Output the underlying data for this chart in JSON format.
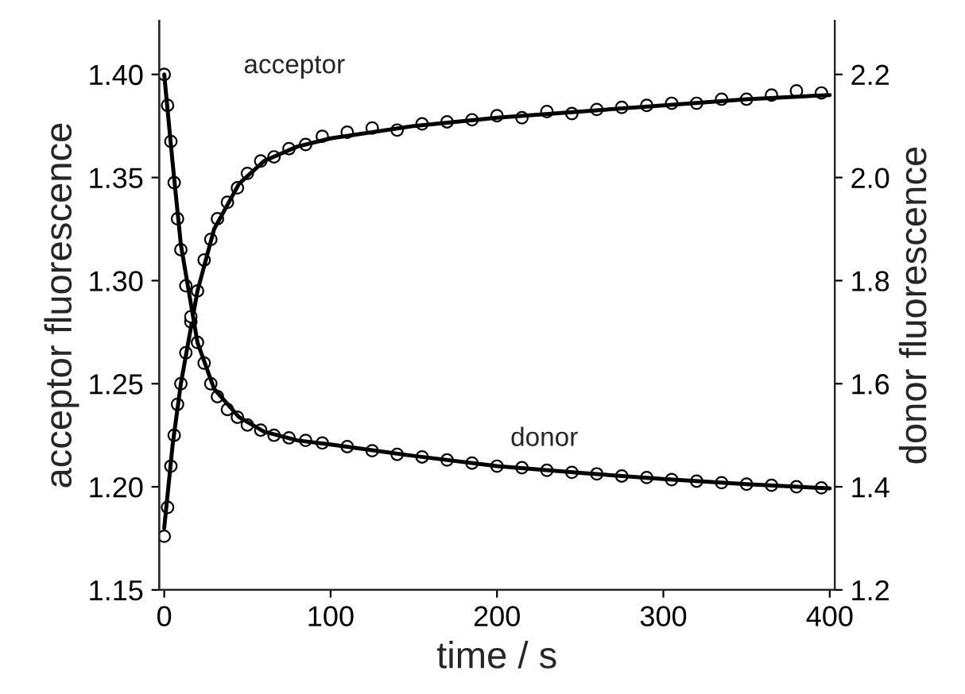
{
  "chart_data": {
    "type": "scatter",
    "xlabel": "time / s",
    "ylabel": "acceptor fluorescence",
    "y2label": "donor fluorescence",
    "xlim": [
      -3,
      403
    ],
    "xticks": [
      0,
      100,
      200,
      300,
      400
    ],
    "ylim": [
      1.15,
      1.426
    ],
    "yticks": [
      {
        "value": 1.15,
        "label": "1.15"
      },
      {
        "value": 1.2,
        "label": "1.20"
      },
      {
        "value": 1.25,
        "label": "1.25"
      },
      {
        "value": 1.3,
        "label": "1.30"
      },
      {
        "value": 1.35,
        "label": "1.35"
      },
      {
        "value": 1.4,
        "label": "1.40"
      }
    ],
    "y2lim": [
      1.2,
      2.304
    ],
    "y2ticks": [
      {
        "value": 1.2,
        "label": "1.2"
      },
      {
        "value": 1.4,
        "label": "1.4"
      },
      {
        "value": 1.6,
        "label": "1.6"
      },
      {
        "value": 1.8,
        "label": "1.8"
      },
      {
        "value": 2.0,
        "label": "2.0"
      },
      {
        "value": 2.2,
        "label": "2.2"
      }
    ],
    "grid": false,
    "annotations": [
      "acceptor",
      "donor"
    ],
    "series": [
      {
        "marker": "circle",
        "color": "#000000",
        "x": [
          0,
          2,
          4,
          6,
          8,
          10,
          13,
          16,
          20,
          24,
          28,
          32,
          38,
          44,
          50,
          58,
          66,
          75,
          85,
          95,
          110,
          125,
          140,
          155,
          170,
          185,
          200,
          215,
          230,
          245,
          260,
          275,
          290,
          305,
          320,
          335,
          350,
          365,
          380,
          395
        ],
        "values": [
          1.176,
          1.19,
          1.21,
          1.225,
          1.24,
          1.25,
          1.265,
          1.28,
          1.295,
          1.31,
          1.32,
          1.33,
          1.338,
          1.345,
          1.352,
          1.358,
          1.36,
          1.364,
          1.366,
          1.37,
          1.372,
          1.374,
          1.373,
          1.376,
          1.377,
          1.378,
          1.38,
          1.379,
          1.382,
          1.381,
          1.383,
          1.384,
          1.385,
          1.386,
          1.386,
          1.388,
          1.388,
          1.39,
          1.392,
          1.391
        ]
      },
      {
        "type": "line",
        "marker": "none",
        "color": "#000000",
        "x": [
          0,
          5,
          10,
          20,
          30,
          45,
          60,
          80,
          100,
          150,
          200,
          250,
          300,
          350,
          400
        ],
        "values": [
          1.18,
          1.22,
          1.25,
          1.295,
          1.325,
          1.347,
          1.358,
          1.365,
          1.369,
          1.375,
          1.379,
          1.382,
          1.385,
          1.388,
          1.39
        ]
      },
      {
        "marker": "circle",
        "axis": "y2",
        "color": "#000000",
        "x": [
          0,
          2,
          4,
          6,
          8,
          10,
          13,
          16,
          20,
          24,
          28,
          32,
          38,
          44,
          50,
          58,
          66,
          75,
          85,
          95,
          110,
          125,
          140,
          155,
          170,
          185,
          200,
          215,
          230,
          245,
          260,
          275,
          290,
          305,
          320,
          335,
          350,
          365,
          380,
          395
        ],
        "values": [
          2.2,
          2.14,
          2.07,
          1.99,
          1.92,
          1.86,
          1.79,
          1.73,
          1.68,
          1.64,
          1.6,
          1.575,
          1.55,
          1.535,
          1.52,
          1.51,
          1.5,
          1.495,
          1.49,
          1.485,
          1.478,
          1.47,
          1.463,
          1.458,
          1.452,
          1.446,
          1.44,
          1.437,
          1.432,
          1.428,
          1.425,
          1.421,
          1.418,
          1.414,
          1.411,
          1.408,
          1.405,
          1.403,
          1.4,
          1.398
        ]
      },
      {
        "type": "line",
        "marker": "none",
        "axis": "y2",
        "color": "#000000",
        "x": [
          0,
          5,
          10,
          20,
          30,
          45,
          60,
          80,
          100,
          150,
          200,
          250,
          300,
          350,
          400
        ],
        "values": [
          2.2,
          2.03,
          1.87,
          1.68,
          1.59,
          1.535,
          1.507,
          1.49,
          1.482,
          1.46,
          1.44,
          1.427,
          1.415,
          1.405,
          1.397
        ]
      }
    ]
  }
}
